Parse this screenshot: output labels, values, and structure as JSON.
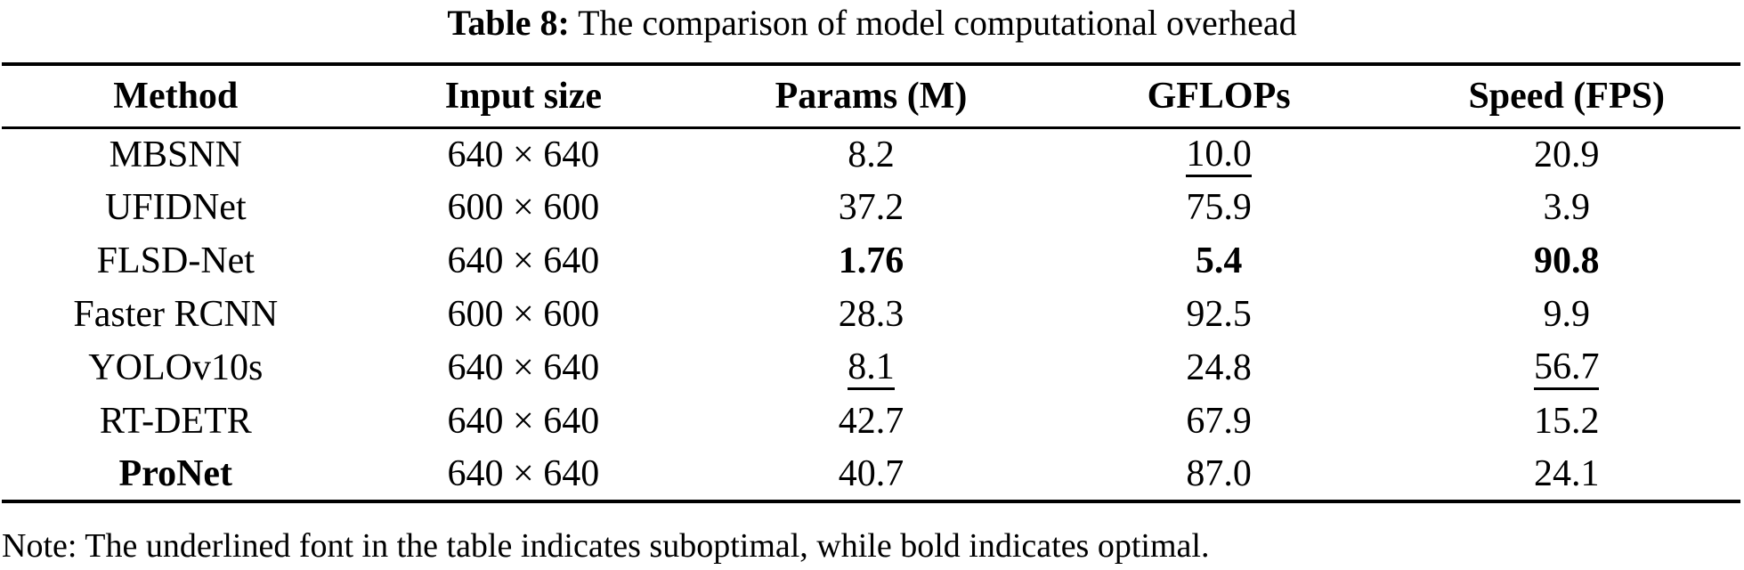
{
  "title": {
    "prefix": "Table 8:",
    "text": "The comparison of model computational overhead"
  },
  "table": {
    "columns": [
      {
        "label": "Method"
      },
      {
        "label": "Input size"
      },
      {
        "label": "Params (M)"
      },
      {
        "label": "GFLOPs"
      },
      {
        "label": "Speed (FPS)"
      }
    ],
    "rows": [
      {
        "cells": [
          {
            "text": "MBSNN",
            "style": "normal"
          },
          {
            "text": "640 × 640",
            "style": "normal"
          },
          {
            "text": "8.2",
            "style": "normal"
          },
          {
            "text": "10.0",
            "style": "underline"
          },
          {
            "text": "20.9",
            "style": "normal"
          }
        ]
      },
      {
        "cells": [
          {
            "text": "UFIDNet",
            "style": "normal"
          },
          {
            "text": "600 × 600",
            "style": "normal"
          },
          {
            "text": "37.2",
            "style": "normal"
          },
          {
            "text": "75.9",
            "style": "normal"
          },
          {
            "text": "3.9",
            "style": "normal"
          }
        ]
      },
      {
        "cells": [
          {
            "text": "FLSD-Net",
            "style": "normal"
          },
          {
            "text": "640 × 640",
            "style": "normal"
          },
          {
            "text": "1.76",
            "style": "bold"
          },
          {
            "text": "5.4",
            "style": "bold"
          },
          {
            "text": "90.8",
            "style": "bold"
          }
        ]
      },
      {
        "cells": [
          {
            "text": "Faster RCNN",
            "style": "normal"
          },
          {
            "text": "600 × 600",
            "style": "normal"
          },
          {
            "text": "28.3",
            "style": "normal"
          },
          {
            "text": "92.5",
            "style": "normal"
          },
          {
            "text": "9.9",
            "style": "normal"
          }
        ]
      },
      {
        "cells": [
          {
            "text": "YOLOv10s",
            "style": "normal"
          },
          {
            "text": "640 × 640",
            "style": "normal"
          },
          {
            "text": "8.1",
            "style": "underline"
          },
          {
            "text": "24.8",
            "style": "normal"
          },
          {
            "text": "56.7",
            "style": "underline"
          }
        ]
      },
      {
        "cells": [
          {
            "text": "RT-DETR",
            "style": "normal"
          },
          {
            "text": "640 × 640",
            "style": "normal"
          },
          {
            "text": "42.7",
            "style": "normal"
          },
          {
            "text": "67.9",
            "style": "normal"
          },
          {
            "text": "15.2",
            "style": "normal"
          }
        ]
      },
      {
        "cells": [
          {
            "text": "ProNet",
            "style": "bold"
          },
          {
            "text": "640 × 640",
            "style": "normal"
          },
          {
            "text": "40.7",
            "style": "normal"
          },
          {
            "text": "87.0",
            "style": "normal"
          },
          {
            "text": "24.1",
            "style": "normal"
          }
        ]
      }
    ]
  },
  "note": "Note: The underlined font in the table indicates suboptimal, while bold indicates optimal.",
  "colors": {
    "text": "#000000",
    "background": "#ffffff",
    "rule": "#000000"
  }
}
